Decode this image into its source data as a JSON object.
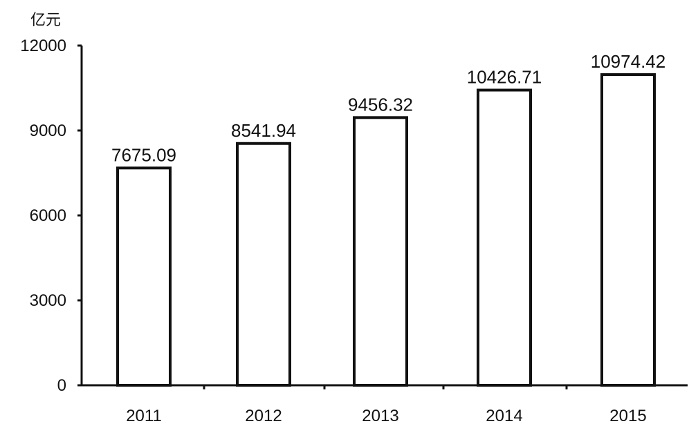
{
  "chart_data": {
    "type": "bar",
    "title": "",
    "xlabel": "",
    "ylabel": "亿元",
    "categories": [
      "2011",
      "2012",
      "2013",
      "2014",
      "2015"
    ],
    "values": [
      7675.09,
      8541.94,
      9456.32,
      10426.71,
      10974.42
    ],
    "value_labels": [
      "7675.09",
      "8541.94",
      "9456.32",
      "10426.71",
      "10974.42"
    ],
    "ylim": [
      0,
      12000
    ],
    "yticks": [
      "0",
      "3000",
      "6000",
      "9000",
      "12000"
    ],
    "grid": false,
    "legend": "none",
    "colors": {
      "bar_fill": "#ffffff",
      "bar_stroke": "#111111",
      "axis": "#111111"
    }
  }
}
